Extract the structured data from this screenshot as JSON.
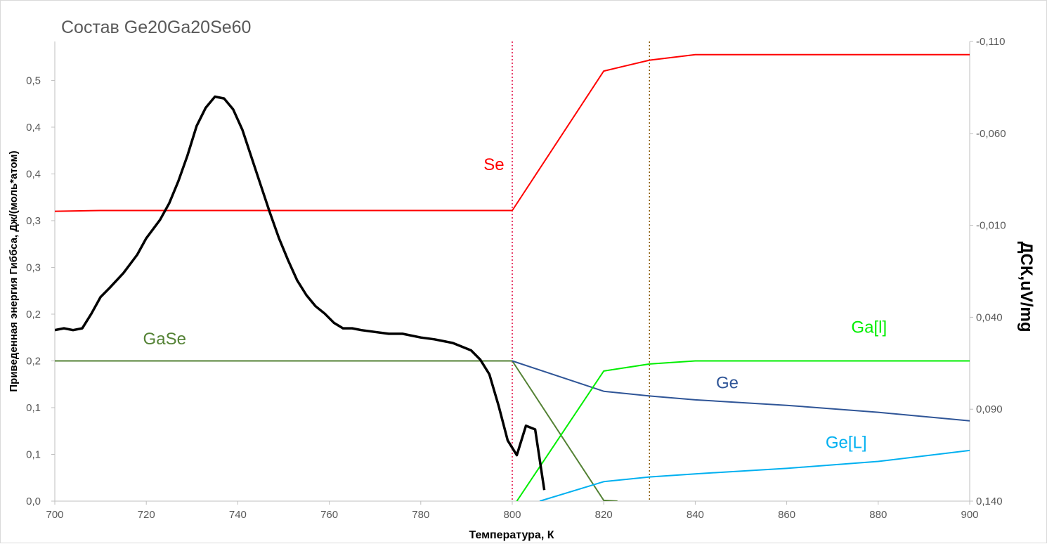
{
  "chart_data": {
    "type": "line",
    "title": "Состав Ge20Ga20Se60",
    "xlabel": "Температура, К",
    "ylabel": "Приведенная энергия Гиббса, Дж/(моль*атом)",
    "y2label": "ДСК,uV/mg",
    "xlim": [
      700,
      900
    ],
    "ylim": [
      0,
      0.59
    ],
    "y2lim": [
      -0.11,
      0.14
    ],
    "x_ticks": [
      "700",
      "720",
      "740",
      "760",
      "780",
      "800",
      "820",
      "840",
      "860",
      "880",
      "900"
    ],
    "y_ticks": [
      "0,0",
      "0,1",
      "0,1",
      "0,2",
      "0,2",
      "0,3",
      "0,3",
      "0,4",
      "0,4",
      "0,5"
    ],
    "y_tick_values": [
      0.0,
      0.06,
      0.12,
      0.18,
      0.24,
      0.3,
      0.36,
      0.42,
      0.48,
      0.54
    ],
    "y2_ticks": [
      "-0,110",
      "-0,060",
      "-0,010",
      "0,040",
      "0,090",
      "0,140"
    ],
    "y2_tick_values": [
      -0.11,
      -0.06,
      -0.01,
      0.04,
      0.09,
      0.14
    ],
    "vlines": [
      {
        "x": 800,
        "color": "#e0003c",
        "style": "dotted"
      },
      {
        "x": 830,
        "color": "#8a5a00",
        "style": "dotted"
      }
    ],
    "series": [
      {
        "name": "Se",
        "color": "#ff0000",
        "axis": "left",
        "x": [
          700,
          710,
          800,
          820,
          830,
          840,
          900
        ],
        "y": [
          0.372,
          0.373,
          0.373,
          0.552,
          0.566,
          0.573,
          0.573
        ]
      },
      {
        "name": "GaSe",
        "color": "#548235",
        "axis": "left",
        "x": [
          700,
          800,
          820,
          823
        ],
        "y": [
          0.18,
          0.18,
          0.001,
          0.0
        ]
      },
      {
        "name": "Ge",
        "color": "#2f5597",
        "axis": "left",
        "x": [
          800,
          820,
          830,
          840,
          860,
          880,
          900
        ],
        "y": [
          0.18,
          0.141,
          0.135,
          0.13,
          0.123,
          0.114,
          0.103
        ]
      },
      {
        "name": "Ga[l]",
        "color": "#00ee00",
        "axis": "left",
        "x": [
          801,
          820,
          830,
          840,
          860,
          900
        ],
        "y": [
          0.0,
          0.167,
          0.176,
          0.18,
          0.18,
          0.18
        ]
      },
      {
        "name": "Ge[L]",
        "color": "#00b0f0",
        "axis": "left",
        "x": [
          806,
          820,
          830,
          840,
          860,
          880,
          900
        ],
        "y": [
          0.0,
          0.025,
          0.031,
          0.035,
          0.042,
          0.051,
          0.065
        ]
      },
      {
        "name": "",
        "color": "#000000",
        "axis": "right",
        "x": [
          700,
          702,
          704,
          706,
          708,
          710,
          712,
          715,
          718,
          720,
          723,
          725,
          727,
          729,
          731,
          733,
          735,
          737,
          739,
          741,
          743,
          745,
          747,
          749,
          751,
          753,
          755,
          757,
          759,
          761,
          763,
          765,
          767,
          770,
          773,
          776,
          780,
          783,
          787,
          791,
          793,
          795,
          797,
          799,
          801,
          803,
          805,
          807
        ],
        "y": [
          0.047,
          0.046,
          0.047,
          0.046,
          0.038,
          0.029,
          0.024,
          0.016,
          0.006,
          -0.003,
          -0.013,
          -0.022,
          -0.034,
          -0.048,
          -0.064,
          -0.074,
          -0.08,
          -0.079,
          -0.073,
          -0.062,
          -0.047,
          -0.032,
          -0.017,
          -0.003,
          0.009,
          0.02,
          0.028,
          0.034,
          0.038,
          0.043,
          0.046,
          0.046,
          0.047,
          0.048,
          0.049,
          0.049,
          0.051,
          0.052,
          0.054,
          0.058,
          0.063,
          0.071,
          0.088,
          0.107,
          0.115,
          0.099,
          0.101,
          0.134
        ]
      }
    ],
    "series_labels": [
      {
        "text": "Se",
        "color": "#ff0000",
        "x": 796,
        "y": 0.425
      },
      {
        "text": "GaSe",
        "color": "#548235",
        "x": 724,
        "y": 0.201
      },
      {
        "text": "Ge",
        "color": "#2f5597",
        "x": 847,
        "y": 0.145
      },
      {
        "text": "Ga[l]",
        "color": "#00ee00",
        "x": 878,
        "y": 0.216
      },
      {
        "text": "Ge[L]",
        "color": "#00b0f0",
        "x": 873,
        "y": 0.068
      }
    ]
  }
}
